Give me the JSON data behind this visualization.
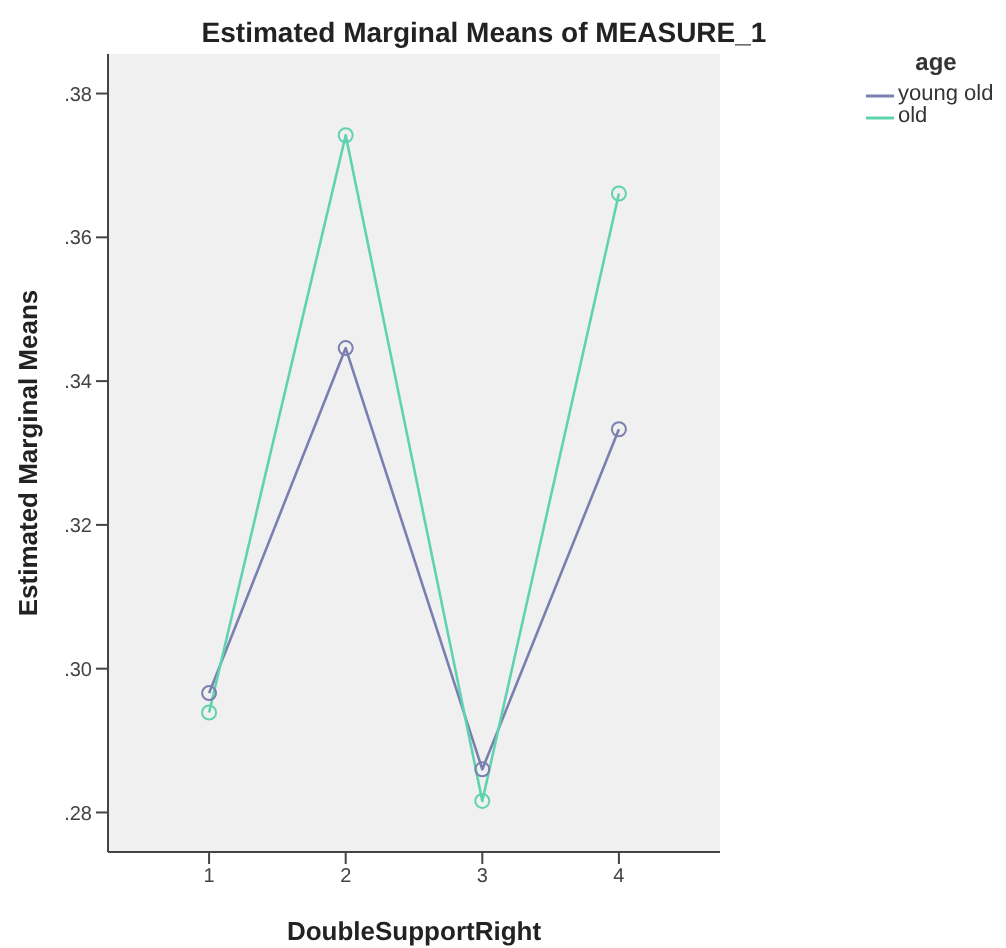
{
  "chart_data": {
    "type": "line",
    "title": "Estimated Marginal Means of MEASURE_1",
    "xlabel": "DoubleSupportRight",
    "ylabel": "Estimated Marginal Means",
    "legend_title": "age",
    "categories": [
      "1",
      "2",
      "3",
      "4"
    ],
    "series": [
      {
        "name": "young old",
        "color": "#7b7fb0",
        "values": [
          0.2966,
          0.3446,
          0.286,
          0.3333
        ]
      },
      {
        "name": "old",
        "color": "#5fd3b0",
        "values": [
          0.2939,
          0.3742,
          0.2816,
          0.3661
        ]
      }
    ],
    "ylim": [
      0.2745,
      0.3855
    ],
    "yticks": [
      {
        "value": 0.28,
        "label": ".28"
      },
      {
        "value": 0.3,
        "label": ".30"
      },
      {
        "value": 0.32,
        "label": ".32"
      },
      {
        "value": 0.34,
        "label": ".34"
      },
      {
        "value": 0.36,
        "label": ".36"
      },
      {
        "value": 0.38,
        "label": ".38"
      }
    ],
    "legend": "top right",
    "marker": "circle",
    "line_style": "solid"
  }
}
